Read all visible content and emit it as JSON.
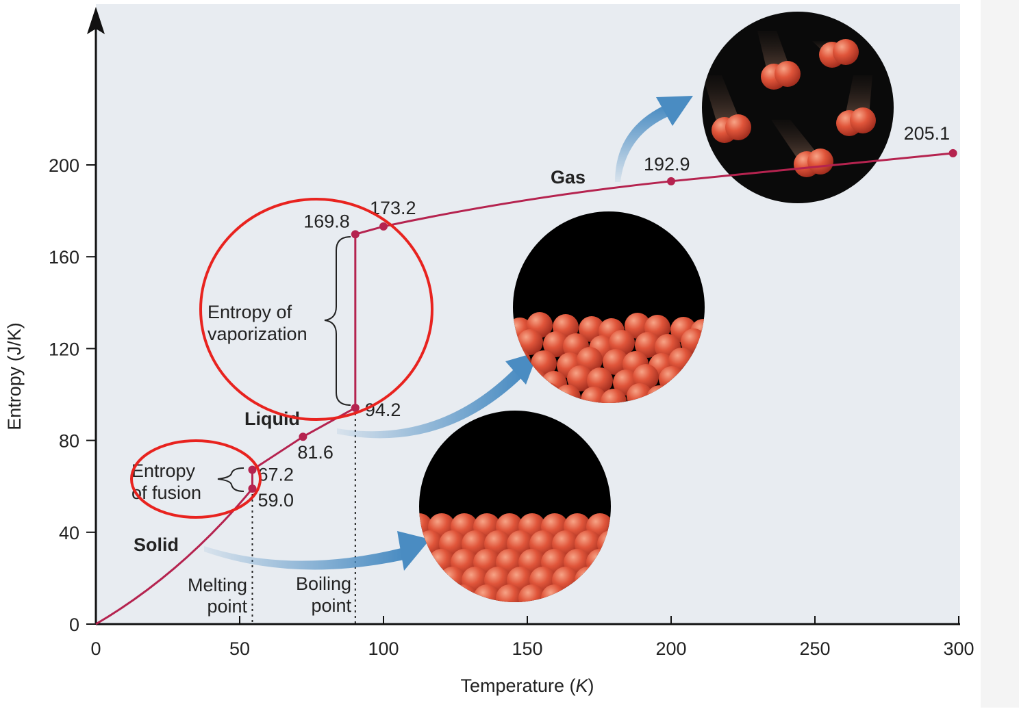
{
  "chart_data": {
    "type": "line",
    "xlabel": "Temperature (K)",
    "xlabel_main": "Temperature (",
    "xlabel_unit": "K",
    "xlabel_close": ")",
    "ylabel": "Entropy (J/K)",
    "xlim": [
      0,
      300
    ],
    "ylim": [
      0,
      200
    ],
    "x_ticks": [
      0,
      50,
      100,
      150,
      200,
      250,
      300
    ],
    "y_ticks": [
      0,
      40,
      80,
      120,
      160,
      200
    ],
    "series": [
      {
        "points": [
          {
            "x": 0,
            "y": 0
          },
          {
            "x": 54.4,
            "y": 59.0
          },
          {
            "x": 54.4,
            "y": 67.2
          },
          {
            "x": 72,
            "y": 81.6
          },
          {
            "x": 90.2,
            "y": 94.2
          },
          {
            "x": 90.2,
            "y": 169.8
          },
          {
            "x": 100,
            "y": 173.2
          },
          {
            "x": 200,
            "y": 192.9
          },
          {
            "x": 298,
            "y": 205.1
          }
        ]
      }
    ],
    "marked_points": [
      {
        "x": 54.4,
        "y": 59.0,
        "label": "59.0"
      },
      {
        "x": 54.4,
        "y": 67.2,
        "label": "67.2"
      },
      {
        "x": 72,
        "y": 81.6,
        "label": "81.6"
      },
      {
        "x": 90.2,
        "y": 94.2,
        "label": "94.2"
      },
      {
        "x": 90.2,
        "y": 169.8,
        "label": "169.8"
      },
      {
        "x": 100,
        "y": 173.2,
        "label": "173.2"
      },
      {
        "x": 200,
        "y": 192.9,
        "label": "192.9"
      },
      {
        "x": 298,
        "y": 205.1,
        "label": "205.1"
      }
    ],
    "phase_labels": [
      "Solid",
      "Liquid",
      "Gas"
    ],
    "annotations": {
      "fusion": [
        "Entropy",
        "of fusion"
      ],
      "vaporization": [
        "Entropy of",
        "vaporization"
      ],
      "melting": [
        "Melting",
        "point"
      ],
      "boiling": [
        "Boiling",
        "point"
      ]
    },
    "melting_point_x": 54.4,
    "boiling_point_x": 90.2,
    "colors": {
      "line": "#b5234f",
      "plot_background": "#e8ecf1",
      "highlight_circle": "#e8231f",
      "arrow": "#4a8cc2"
    }
  }
}
